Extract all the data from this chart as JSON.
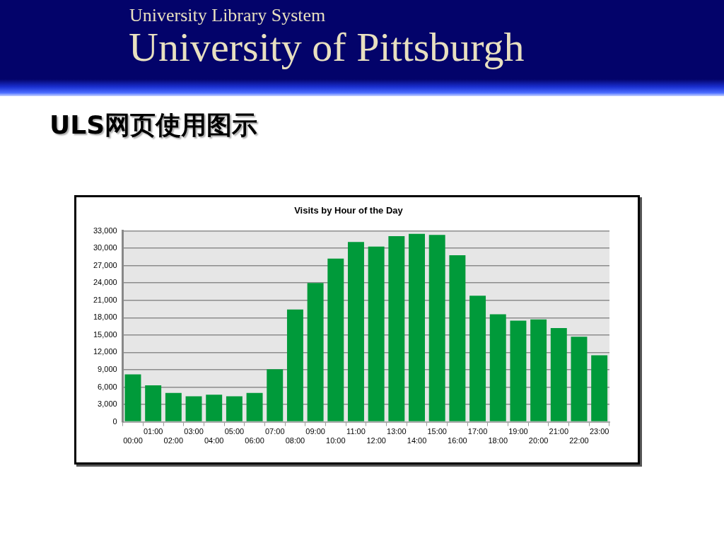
{
  "chart_data": {
    "type": "bar",
    "title": "Visits by Hour of the Day",
    "annotations": [
      "University Library System",
      "University of Pittsburgh",
      "ULS网页使用图示"
    ],
    "categories": [
      "00:00",
      "01:00",
      "02:00",
      "03:00",
      "04:00",
      "05:00",
      "06:00",
      "07:00",
      "08:00",
      "09:00",
      "10:00",
      "11:00",
      "12:00",
      "13:00",
      "14:00",
      "15:00",
      "16:00",
      "17:00",
      "18:00",
      "19:00",
      "20:00",
      "21:00",
      "22:00",
      "23:00"
    ],
    "values": [
      8200,
      6300,
      5000,
      4400,
      4700,
      4400,
      5000,
      9100,
      19400,
      24000,
      28200,
      31100,
      30300,
      32100,
      32500,
      32300,
      28800,
      21800,
      18600,
      17500,
      17700,
      16200,
      14700,
      11500
    ],
    "color": "#009a3a",
    "ylim": [
      0,
      33000
    ],
    "yticks": [
      0,
      {
        "value": 3000,
        "label": "3,000"
      },
      {
        "value": 6000,
        "label": "6,000"
      },
      {
        "value": 9000,
        "label": "9,000"
      },
      {
        "value": 12000,
        "label": "12,000"
      },
      {
        "value": 15000,
        "label": "15,000"
      },
      {
        "value": 18000,
        "label": "18,000"
      },
      {
        "value": 21000,
        "label": "21,000"
      },
      {
        "value": 24000,
        "label": "24,000"
      },
      {
        "value": 27000,
        "label": "27,000"
      },
      {
        "value": 30000,
        "label": "30,000"
      },
      {
        "value": 33000,
        "label": "33,000"
      }
    ],
    "grid": "y"
  }
}
